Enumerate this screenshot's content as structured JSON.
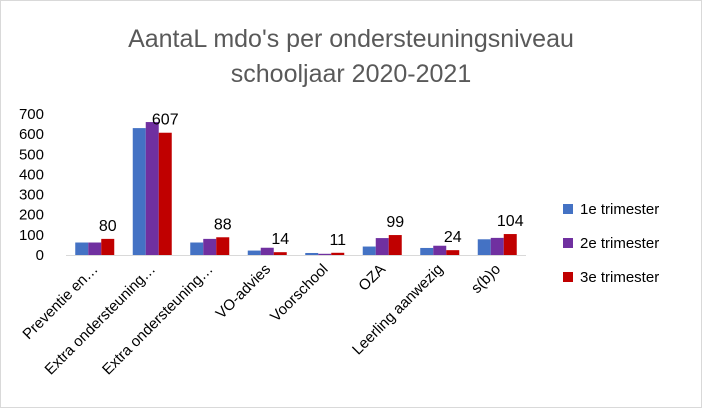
{
  "chart_data": {
    "type": "bar",
    "title_line1": "AantaL mdo's  per ondersteuningsniveau",
    "title_line2": "schooljaar 2020-2021",
    "categories": [
      "Preventie en…",
      "Extra ondersteuning…",
      "Extra ondersteuning…",
      "VO-advies",
      "Voorschool",
      "OZA",
      "Leerling aanwezig",
      "s(b)o"
    ],
    "series": [
      {
        "name": "1e trimester",
        "color": "#4472c4",
        "values": [
          62,
          630,
          62,
          22,
          10,
          42,
          35,
          78
        ]
      },
      {
        "name": "2e trimester",
        "color": "#7030a0",
        "values": [
          62,
          660,
          80,
          36,
          6,
          84,
          46,
          85
        ]
      },
      {
        "name": "3e trimester",
        "color": "#c00000",
        "values": [
          80,
          607,
          88,
          14,
          11,
          99,
          24,
          104
        ]
      }
    ],
    "data_labels": [
      "80",
      "607",
      "88",
      "14",
      "11",
      "99",
      "24",
      "104"
    ],
    "yticks": [
      "0",
      "100",
      "200",
      "300",
      "400",
      "500",
      "600",
      "700"
    ],
    "ylim": [
      0,
      700
    ],
    "grid": false,
    "legend_position": "right"
  }
}
